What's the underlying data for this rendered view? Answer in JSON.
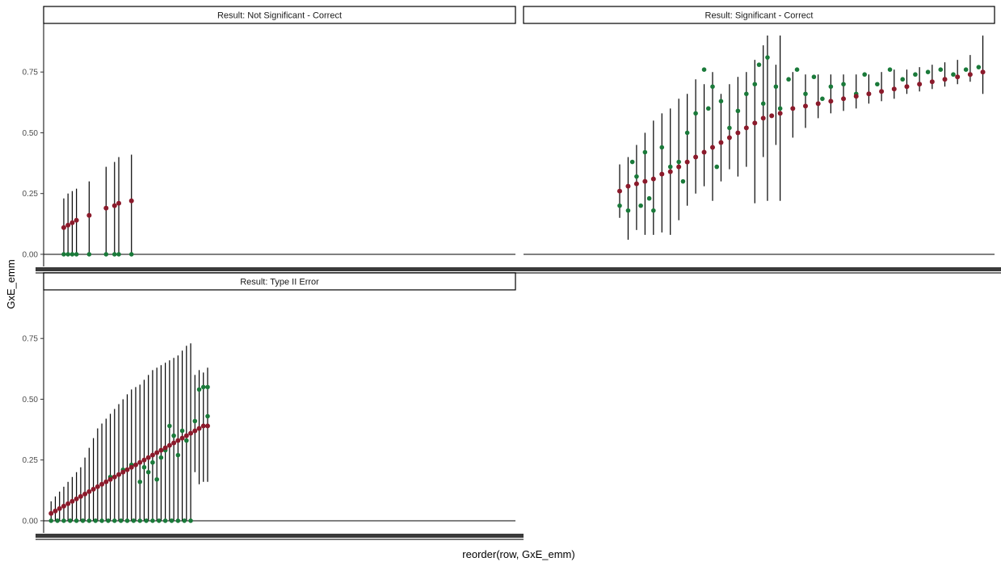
{
  "chart_data": {
    "type": "scatter",
    "xlabel": "reorder(row, GxE_emm)",
    "ylabel": "GxE_emm",
    "ylim": [
      -0.05,
      0.95
    ],
    "y_ticks": [
      0.0,
      0.25,
      0.5,
      0.75
    ],
    "y_tick_labels": [
      "0.00",
      "0.25",
      "0.50",
      "0.75"
    ],
    "grid": false,
    "legend": "none",
    "colors": {
      "estimate": "#8b1a2b",
      "observed": "#1a7a3a",
      "interval": "#000000",
      "strip_border": "#000000"
    },
    "panels": [
      {
        "title": "Result: Not Significant - Correct",
        "n_x": 220,
        "estimate": [
          [
            8,
            0.11
          ],
          [
            10,
            0.12
          ],
          [
            12,
            0.13
          ],
          [
            14,
            0.14
          ],
          [
            20,
            0.16
          ],
          [
            28,
            0.19
          ],
          [
            32,
            0.2
          ],
          [
            34,
            0.21
          ],
          [
            40,
            0.22
          ]
        ],
        "observed": [
          [
            8,
            0.0
          ],
          [
            10,
            0.0
          ],
          [
            12,
            0.0
          ],
          [
            14,
            0.0
          ],
          [
            20,
            0.0
          ],
          [
            28,
            0.0
          ],
          [
            32,
            0.0
          ],
          [
            34,
            0.0
          ],
          [
            40,
            0.0
          ]
        ],
        "intervals": [
          [
            8,
            0.0,
            0.23
          ],
          [
            10,
            0.0,
            0.25
          ],
          [
            12,
            0.0,
            0.26
          ],
          [
            14,
            0.0,
            0.27
          ],
          [
            20,
            0.0,
            0.3
          ],
          [
            28,
            0.0,
            0.36
          ],
          [
            32,
            0.0,
            0.38
          ],
          [
            34,
            0.0,
            0.4
          ],
          [
            40,
            0.0,
            0.41
          ]
        ]
      },
      {
        "title": "Result: Significant - Correct",
        "n_x": 220,
        "estimate": [
          [
            44,
            0.26
          ],
          [
            48,
            0.28
          ],
          [
            52,
            0.29
          ],
          [
            56,
            0.3
          ],
          [
            60,
            0.31
          ],
          [
            64,
            0.33
          ],
          [
            68,
            0.34
          ],
          [
            72,
            0.36
          ],
          [
            76,
            0.38
          ],
          [
            80,
            0.4
          ],
          [
            84,
            0.42
          ],
          [
            88,
            0.44
          ],
          [
            92,
            0.46
          ],
          [
            96,
            0.48
          ],
          [
            100,
            0.5
          ],
          [
            104,
            0.52
          ],
          [
            108,
            0.54
          ],
          [
            112,
            0.56
          ],
          [
            116,
            0.57
          ],
          [
            120,
            0.58
          ],
          [
            126,
            0.6
          ],
          [
            132,
            0.61
          ],
          [
            138,
            0.62
          ],
          [
            144,
            0.63
          ],
          [
            150,
            0.64
          ],
          [
            156,
            0.65
          ],
          [
            162,
            0.66
          ],
          [
            168,
            0.67
          ],
          [
            174,
            0.68
          ],
          [
            180,
            0.69
          ],
          [
            186,
            0.7
          ],
          [
            192,
            0.71
          ],
          [
            198,
            0.72
          ],
          [
            204,
            0.73
          ],
          [
            210,
            0.74
          ],
          [
            216,
            0.75
          ]
        ],
        "observed": [
          [
            44,
            0.2
          ],
          [
            48,
            0.18
          ],
          [
            50,
            0.38
          ],
          [
            52,
            0.32
          ],
          [
            54,
            0.2
          ],
          [
            56,
            0.42
          ],
          [
            58,
            0.23
          ],
          [
            60,
            0.18
          ],
          [
            64,
            0.44
          ],
          [
            68,
            0.36
          ],
          [
            72,
            0.38
          ],
          [
            74,
            0.3
          ],
          [
            76,
            0.5
          ],
          [
            80,
            0.58
          ],
          [
            84,
            0.76
          ],
          [
            86,
            0.6
          ],
          [
            88,
            0.69
          ],
          [
            90,
            0.36
          ],
          [
            92,
            0.63
          ],
          [
            96,
            0.52
          ],
          [
            100,
            0.59
          ],
          [
            104,
            0.66
          ],
          [
            108,
            0.7
          ],
          [
            110,
            0.78
          ],
          [
            112,
            0.62
          ],
          [
            114,
            0.81
          ],
          [
            118,
            0.69
          ],
          [
            120,
            0.6
          ],
          [
            124,
            0.72
          ],
          [
            128,
            0.76
          ],
          [
            132,
            0.66
          ],
          [
            136,
            0.73
          ],
          [
            140,
            0.64
          ],
          [
            144,
            0.69
          ],
          [
            150,
            0.7
          ],
          [
            156,
            0.66
          ],
          [
            160,
            0.74
          ],
          [
            166,
            0.7
          ],
          [
            172,
            0.76
          ],
          [
            178,
            0.72
          ],
          [
            184,
            0.74
          ],
          [
            190,
            0.75
          ],
          [
            196,
            0.76
          ],
          [
            202,
            0.74
          ],
          [
            208,
            0.76
          ],
          [
            214,
            0.77
          ]
        ],
        "intervals": [
          [
            44,
            0.15,
            0.37
          ],
          [
            48,
            0.06,
            0.4
          ],
          [
            52,
            0.1,
            0.45
          ],
          [
            56,
            0.08,
            0.5
          ],
          [
            60,
            0.08,
            0.55
          ],
          [
            64,
            0.09,
            0.58
          ],
          [
            68,
            0.08,
            0.6
          ],
          [
            72,
            0.14,
            0.64
          ],
          [
            76,
            0.2,
            0.66
          ],
          [
            80,
            0.25,
            0.72
          ],
          [
            84,
            0.28,
            0.7
          ],
          [
            88,
            0.22,
            0.75
          ],
          [
            92,
            0.3,
            0.66
          ],
          [
            96,
            0.35,
            0.7
          ],
          [
            100,
            0.32,
            0.73
          ],
          [
            104,
            0.36,
            0.75
          ],
          [
            108,
            0.21,
            0.8
          ],
          [
            112,
            0.4,
            0.86
          ],
          [
            114,
            0.22,
            0.9
          ],
          [
            118,
            0.45,
            0.78
          ],
          [
            120,
            0.22,
            0.9
          ],
          [
            126,
            0.48,
            0.75
          ],
          [
            132,
            0.52,
            0.74
          ],
          [
            138,
            0.56,
            0.74
          ],
          [
            144,
            0.58,
            0.74
          ],
          [
            150,
            0.59,
            0.74
          ],
          [
            156,
            0.6,
            0.74
          ],
          [
            162,
            0.62,
            0.74
          ],
          [
            168,
            0.63,
            0.75
          ],
          [
            174,
            0.64,
            0.76
          ],
          [
            180,
            0.66,
            0.76
          ],
          [
            186,
            0.67,
            0.77
          ],
          [
            192,
            0.68,
            0.78
          ],
          [
            198,
            0.69,
            0.79
          ],
          [
            204,
            0.7,
            0.8
          ],
          [
            210,
            0.71,
            0.82
          ],
          [
            216,
            0.66,
            0.9
          ]
        ]
      },
      {
        "title": "Result: Type II Error",
        "n_x": 220,
        "estimate": [
          [
            2,
            0.03
          ],
          [
            4,
            0.04
          ],
          [
            6,
            0.05
          ],
          [
            8,
            0.06
          ],
          [
            10,
            0.07
          ],
          [
            12,
            0.08
          ],
          [
            14,
            0.09
          ],
          [
            16,
            0.1
          ],
          [
            18,
            0.11
          ],
          [
            20,
            0.12
          ],
          [
            22,
            0.13
          ],
          [
            24,
            0.14
          ],
          [
            26,
            0.15
          ],
          [
            28,
            0.16
          ],
          [
            30,
            0.17
          ],
          [
            32,
            0.18
          ],
          [
            34,
            0.19
          ],
          [
            36,
            0.2
          ],
          [
            38,
            0.21
          ],
          [
            40,
            0.22
          ],
          [
            42,
            0.23
          ],
          [
            44,
            0.24
          ],
          [
            46,
            0.25
          ],
          [
            48,
            0.26
          ],
          [
            50,
            0.27
          ],
          [
            52,
            0.28
          ],
          [
            54,
            0.29
          ],
          [
            56,
            0.3
          ],
          [
            58,
            0.31
          ],
          [
            60,
            0.32
          ],
          [
            62,
            0.33
          ],
          [
            64,
            0.34
          ],
          [
            66,
            0.35
          ],
          [
            68,
            0.36
          ],
          [
            70,
            0.37
          ],
          [
            72,
            0.38
          ],
          [
            74,
            0.39
          ],
          [
            76,
            0.39
          ]
        ],
        "observed": [
          [
            2,
            0.0
          ],
          [
            5,
            0.0
          ],
          [
            8,
            0.0
          ],
          [
            11,
            0.0
          ],
          [
            14,
            0.0
          ],
          [
            17,
            0.0
          ],
          [
            20,
            0.0
          ],
          [
            23,
            0.0
          ],
          [
            26,
            0.0
          ],
          [
            29,
            0.0
          ],
          [
            32,
            0.0
          ],
          [
            35,
            0.0
          ],
          [
            38,
            0.0
          ],
          [
            41,
            0.0
          ],
          [
            44,
            0.0
          ],
          [
            47,
            0.0
          ],
          [
            50,
            0.0
          ],
          [
            53,
            0.0
          ],
          [
            56,
            0.0
          ],
          [
            59,
            0.0
          ],
          [
            62,
            0.0
          ],
          [
            65,
            0.0
          ],
          [
            68,
            0.0
          ],
          [
            30,
            0.18
          ],
          [
            34,
            0.19
          ],
          [
            36,
            0.21
          ],
          [
            40,
            0.23
          ],
          [
            44,
            0.16
          ],
          [
            46,
            0.22
          ],
          [
            48,
            0.2
          ],
          [
            50,
            0.24
          ],
          [
            52,
            0.17
          ],
          [
            54,
            0.26
          ],
          [
            56,
            0.29
          ],
          [
            58,
            0.39
          ],
          [
            60,
            0.35
          ],
          [
            62,
            0.27
          ],
          [
            64,
            0.37
          ],
          [
            66,
            0.33
          ],
          [
            70,
            0.41
          ],
          [
            72,
            0.54
          ],
          [
            74,
            0.55
          ],
          [
            76,
            0.43
          ],
          [
            76,
            0.55
          ]
        ],
        "intervals": [
          [
            2,
            0.0,
            0.08
          ],
          [
            4,
            0.0,
            0.1
          ],
          [
            6,
            0.0,
            0.12
          ],
          [
            8,
            0.0,
            0.14
          ],
          [
            10,
            0.0,
            0.16
          ],
          [
            12,
            0.0,
            0.18
          ],
          [
            14,
            0.0,
            0.2
          ],
          [
            16,
            0.0,
            0.22
          ],
          [
            18,
            0.0,
            0.26
          ],
          [
            20,
            0.0,
            0.3
          ],
          [
            22,
            0.0,
            0.34
          ],
          [
            24,
            0.0,
            0.38
          ],
          [
            26,
            0.0,
            0.4
          ],
          [
            28,
            0.0,
            0.42
          ],
          [
            30,
            0.0,
            0.44
          ],
          [
            32,
            0.0,
            0.46
          ],
          [
            34,
            0.0,
            0.48
          ],
          [
            36,
            0.0,
            0.5
          ],
          [
            38,
            0.0,
            0.52
          ],
          [
            40,
            0.0,
            0.54
          ],
          [
            42,
            0.0,
            0.55
          ],
          [
            44,
            0.0,
            0.56
          ],
          [
            46,
            0.0,
            0.58
          ],
          [
            48,
            0.0,
            0.6
          ],
          [
            50,
            0.0,
            0.62
          ],
          [
            52,
            0.0,
            0.63
          ],
          [
            54,
            0.0,
            0.64
          ],
          [
            56,
            0.0,
            0.65
          ],
          [
            58,
            0.0,
            0.66
          ],
          [
            60,
            0.0,
            0.67
          ],
          [
            62,
            0.0,
            0.68
          ],
          [
            64,
            0.0,
            0.7
          ],
          [
            66,
            0.0,
            0.72
          ],
          [
            68,
            0.0,
            0.73
          ],
          [
            70,
            0.2,
            0.6
          ],
          [
            72,
            0.15,
            0.62
          ],
          [
            74,
            0.16,
            0.61
          ],
          [
            76,
            0.16,
            0.63
          ]
        ]
      }
    ]
  }
}
